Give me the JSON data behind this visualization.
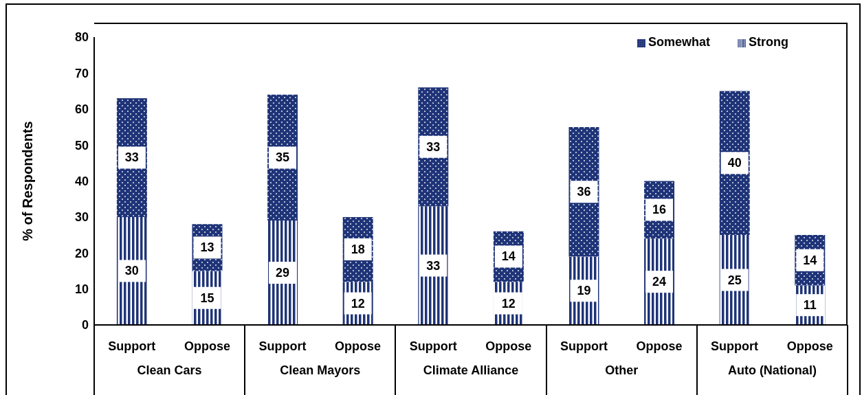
{
  "chart_data": {
    "type": "bar",
    "stacked": true,
    "ylabel": "% of Respondents",
    "categories": [
      "Support",
      "Oppose",
      "Support",
      "Oppose",
      "Support",
      "Oppose",
      "Support",
      "Oppose",
      "Support",
      "Oppose"
    ],
    "annotations": [
      "Clean Cars",
      "Clean Mayors",
      "Climate Alliance",
      "Other",
      "Auto (National)"
    ],
    "series": [
      {
        "name": "Strong",
        "color": "#1f3478",
        "values": [
          30,
          15,
          29,
          12,
          33,
          12,
          19,
          24,
          25,
          11
        ]
      },
      {
        "name": "Somewhat",
        "color": "#1f3478",
        "values": [
          33,
          13,
          35,
          18,
          33,
          14,
          36,
          16,
          40,
          14
        ]
      }
    ],
    "ylim": [
      0,
      80
    ],
    "yticks": [
      0,
      10,
      20,
      30,
      40,
      50,
      60,
      70,
      80
    ],
    "data_labels": true,
    "legend": "top right"
  }
}
